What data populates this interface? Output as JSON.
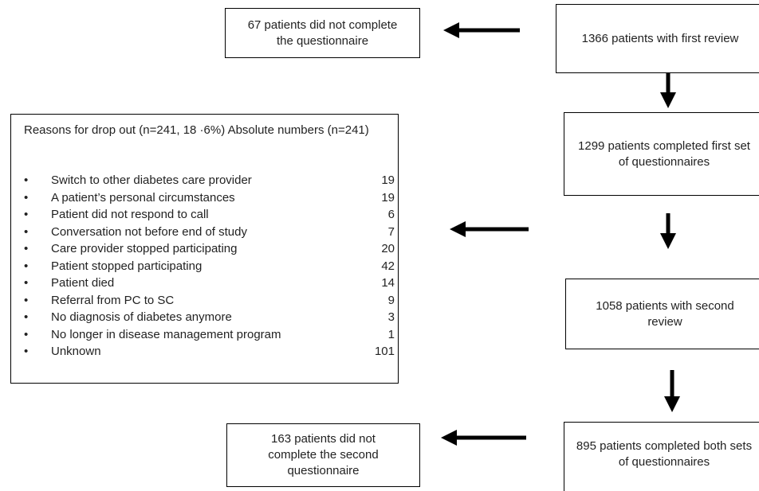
{
  "nodes": [
    {
      "label": "1366 patients with first review"
    },
    {
      "label": "67 patients did not complete the questionnaire"
    },
    {
      "label": "1299 patients completed first set of questionnaires"
    },
    {
      "label": "1058 patients with second review"
    },
    {
      "label": "895 patients completed both sets of questionnaires"
    },
    {
      "label": "163 patients did not complete the second questionnaire"
    }
  ],
  "reasons": {
    "title": "Reasons for drop out (n=241, 18 ·6%) Absolute numbers (n=241)",
    "items": [
      {
        "label": "Switch to other diabetes care provider",
        "count": 19
      },
      {
        "label": "A patient’s personal circumstances",
        "count": 19
      },
      {
        "label": "Patient did not respond to call",
        "count": 6
      },
      {
        "label": "Conversation not before end of study",
        "count": 7
      },
      {
        "label": "Care provider stopped participating",
        "count": 20
      },
      {
        "label": "Patient stopped participating",
        "count": 42
      },
      {
        "label": "Patient died",
        "count": 14
      },
      {
        "label": "Referral from PC to SC",
        "count": 9
      },
      {
        "label": "No diagnosis of diabetes anymore",
        "count": 3
      },
      {
        "label": "No longer in disease management program",
        "count": 1
      },
      {
        "label": "Unknown",
        "count": 101
      }
    ]
  }
}
